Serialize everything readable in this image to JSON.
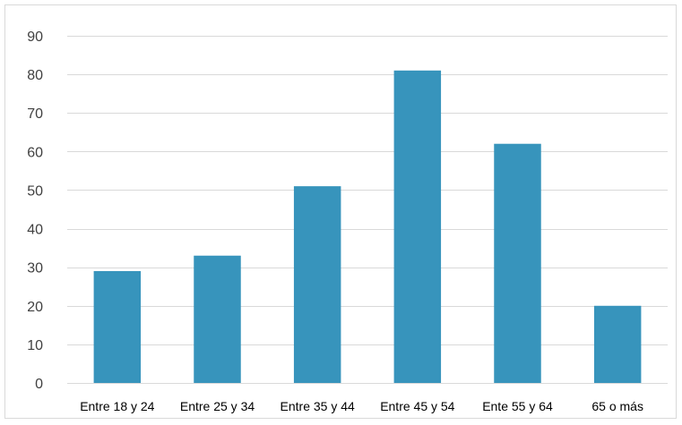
{
  "chart_data": {
    "type": "bar",
    "categories": [
      "Entre 18 y 24",
      "Entre 25 y 34",
      "Entre 35 y 44",
      "Entre 45 y 54",
      "Ente 55 y 64",
      "65 o más"
    ],
    "values": [
      29,
      33,
      51,
      81,
      62,
      20
    ],
    "title": "",
    "xlabel": "",
    "ylabel": "",
    "ylim": [
      0,
      90
    ],
    "yticks": [
      0,
      10,
      20,
      30,
      40,
      50,
      60,
      70,
      80,
      90
    ],
    "grid": true,
    "legend": "none",
    "colors": {
      "bar": "#3794bc",
      "grid": "#d9d9d9",
      "frame": "#d9d9d9"
    }
  }
}
